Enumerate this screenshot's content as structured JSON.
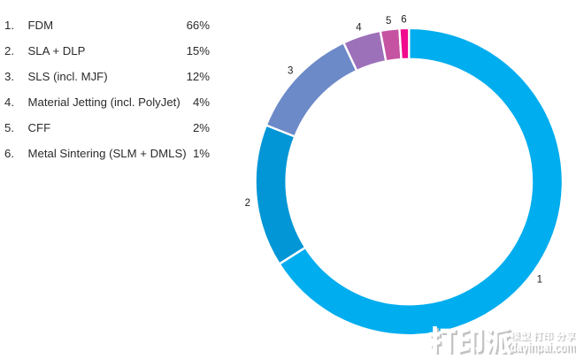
{
  "page": {
    "background": "#ffffff"
  },
  "chart_data": {
    "type": "pie",
    "subtype": "donut",
    "title": "",
    "categories": [
      "FDM",
      "SLA + DLP",
      "SLS (incl. MJF)",
      "Material Jetting (incl. PolyJet)",
      "CFF",
      "Metal Sintering (SLM + DMLS)"
    ],
    "values": [
      66,
      15,
      12,
      4,
      2,
      1
    ],
    "unit": "%",
    "colors": [
      "#00ADEE",
      "#0396D6",
      "#6C89C8",
      "#9D70BA",
      "#C553A2",
      "#F00A8E"
    ],
    "slice_labels": [
      "1",
      "2",
      "3",
      "4",
      "5",
      "6"
    ],
    "start_angle": "12 o'clock",
    "direction": "clockwise",
    "legend_position": "top-left",
    "grid": false
  },
  "legend": {
    "rows": [
      {
        "number": "1.",
        "label": "FDM",
        "value": "66%"
      },
      {
        "number": "2.",
        "label": "SLA + DLP",
        "value": "15%"
      },
      {
        "number": "3.",
        "label": "SLS (incl. MJF)",
        "value": "12%"
      },
      {
        "number": "4.",
        "label": "Material Jetting (incl. PolyJet)",
        "value": "4%"
      },
      {
        "number": "5.",
        "label": "CFF",
        "value": "2%"
      },
      {
        "number": "6.",
        "label": "Metal Sintering (SLM + DMLS)",
        "value": "1%"
      }
    ]
  },
  "watermark": {
    "logo_text": "打印派",
    "tagline": "模型 打印 分享",
    "site": "dayinpai.com"
  }
}
